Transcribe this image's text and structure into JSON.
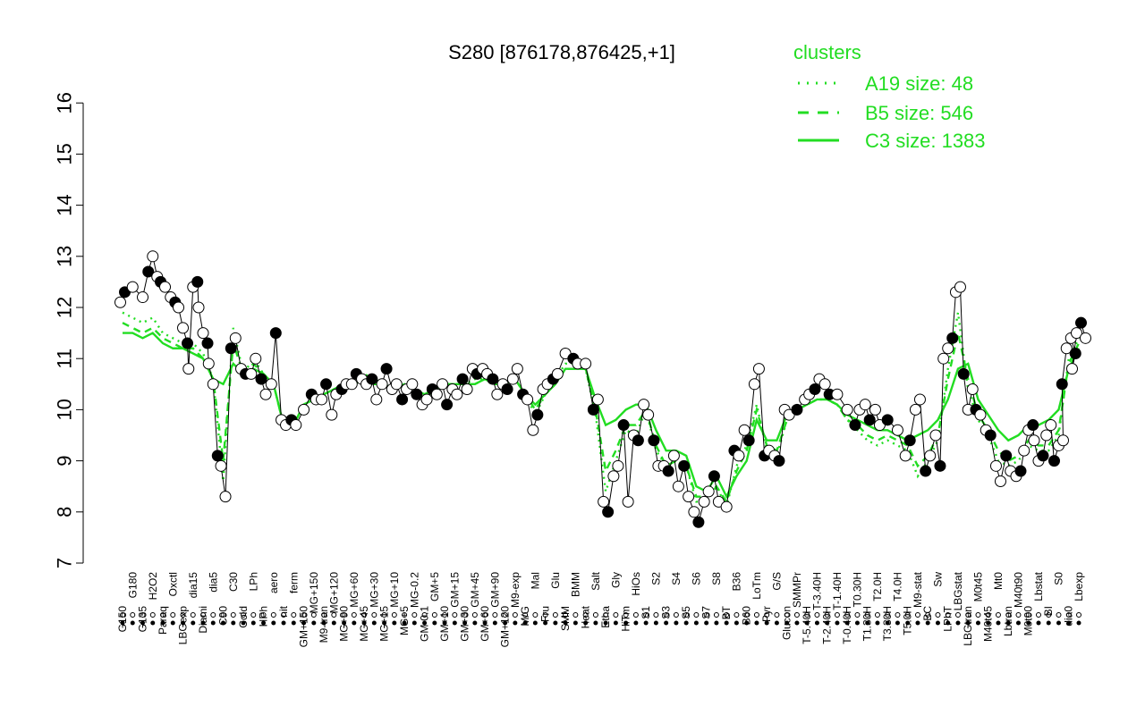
{
  "chart_data": {
    "type": "line",
    "title": "S280 [876178,876425,+1]",
    "xlabel": "",
    "ylabel": "",
    "ylim": [
      7,
      16
    ],
    "yticks": [
      7,
      8,
      9,
      10,
      11,
      12,
      13,
      14,
      15,
      16
    ],
    "legend": {
      "title": "clusters",
      "placement": "top-right",
      "color": "#22dd22",
      "entries": [
        {
          "label": "A19 size: 48",
          "style": "dotted"
        },
        {
          "label": "B5 size: 546",
          "style": "dashed"
        },
        {
          "label": "C3 size: 1383",
          "style": "solid"
        }
      ]
    },
    "categories": [
      "G150",
      "G180",
      "G135",
      "H2O2",
      "Paraq",
      "Oxctl",
      "LBGexp",
      "dia15",
      "Diami",
      "dia5",
      "C90",
      "C30",
      "Cold",
      "LPh",
      "HPh",
      "aero",
      "nit",
      "ferm",
      "GM+150",
      "MG+150",
      "M9-tran",
      "MG+120",
      "MG+90",
      "MG+60",
      "MG+45",
      "MG+30",
      "MG+15",
      "MG+10",
      "MG+5",
      "MG-0.2",
      "GM-0.1",
      "GM+5",
      "GM+10",
      "GM+15",
      "GM+30",
      "GM+45",
      "GM+60",
      "GM+90",
      "GM+120",
      "M9-exp",
      "M/G",
      "Mal",
      "Fru",
      "Glu",
      "SMM",
      "BMM",
      "Heat",
      "Salt",
      "Etha",
      "Gly",
      "HiTm",
      "HiOs",
      "S1",
      "S2",
      "S3",
      "S4",
      "S5",
      "S6",
      "S7",
      "S8",
      "BT",
      "B36",
      "B60",
      "LoTm",
      "Pyr",
      "G/S",
      "Glucon",
      "SMMPr",
      "T-5.40H",
      "T-3.40H",
      "T-2.40H",
      "T-1.40H",
      "T-0.40H",
      "T0.30H",
      "T1.30H",
      "T2.0H",
      "T3.30H",
      "T4.0H",
      "T5.0H",
      "M9-stat",
      "BC",
      "Sw",
      "LPhT",
      "LBGstat",
      "LBGtran",
      "M0t45",
      "M40t45",
      "Mt0",
      "Lbtran",
      "M40t90",
      "M0t90",
      "Lbstat",
      "BI",
      "S0",
      "dia0",
      "Lbexp"
    ],
    "series": [
      {
        "name": "A19 size: 48",
        "style": "dotted",
        "values": [
          11.9,
          11.8,
          11.7,
          11.8,
          11.5,
          11.4,
          11.3,
          11.3,
          11.1,
          10.6,
          8.6,
          11.6,
          10.7,
          11.0,
          10.7,
          10.5,
          9.7,
          9.7,
          10.1,
          10.2,
          10.3,
          10.4,
          10.5,
          10.6,
          10.7,
          10.6,
          10.5,
          10.4,
          10.5,
          10.4,
          10.2,
          10.4,
          10.5,
          10.5,
          10.5,
          10.6,
          10.6,
          10.5,
          10.5,
          10.6,
          10.3,
          9.9,
          10.3,
          10.6,
          10.9,
          10.9,
          10.8,
          9.9,
          8.4,
          9.0,
          9.6,
          9.5,
          10.0,
          9.2,
          8.9,
          9.0,
          8.9,
          8.2,
          8.2,
          8.5,
          8.1,
          8.9,
          9.3,
          10.1,
          9.2,
          9.1,
          9.8,
          10.0,
          10.1,
          10.2,
          10.2,
          10.1,
          9.8,
          9.6,
          9.4,
          9.3,
          9.4,
          9.3,
          9.2,
          8.7,
          9.0,
          9.4,
          10.8,
          11.9,
          10.4,
          9.8,
          9.5,
          9.0,
          8.9,
          9.0,
          9.3,
          9.2,
          9.2,
          9.5,
          11.0,
          11.4
        ]
      },
      {
        "name": "B5 size: 546",
        "style": "dashed",
        "values": [
          11.7,
          11.6,
          11.5,
          11.6,
          11.4,
          11.3,
          11.2,
          11.2,
          11.0,
          10.6,
          9.0,
          11.3,
          10.7,
          10.9,
          10.7,
          10.5,
          9.7,
          9.7,
          10.1,
          10.2,
          10.3,
          10.4,
          10.5,
          10.5,
          10.6,
          10.5,
          10.5,
          10.4,
          10.5,
          10.4,
          10.3,
          10.4,
          10.5,
          10.5,
          10.5,
          10.5,
          10.6,
          10.5,
          10.5,
          10.6,
          10.3,
          10.0,
          10.3,
          10.5,
          10.8,
          10.8,
          10.8,
          10.0,
          8.8,
          9.2,
          9.7,
          9.7,
          10.0,
          9.3,
          8.9,
          9.0,
          8.9,
          8.3,
          8.3,
          8.5,
          8.2,
          8.8,
          9.2,
          10.0,
          9.3,
          9.2,
          9.8,
          10.0,
          10.1,
          10.2,
          10.2,
          10.1,
          9.8,
          9.7,
          9.5,
          9.4,
          9.5,
          9.4,
          9.3,
          8.9,
          9.1,
          9.5,
          10.6,
          11.5,
          10.6,
          9.9,
          9.6,
          9.2,
          9.0,
          9.1,
          9.4,
          9.3,
          9.3,
          9.6,
          10.9,
          11.3
        ]
      },
      {
        "name": "C3 size: 1383",
        "style": "solid",
        "values": [
          11.5,
          11.5,
          11.4,
          11.5,
          11.3,
          11.2,
          11.2,
          11.1,
          11.0,
          10.6,
          10.5,
          10.9,
          10.7,
          10.8,
          10.7,
          10.5,
          9.7,
          9.7,
          10.1,
          10.2,
          10.3,
          10.4,
          10.5,
          10.5,
          10.6,
          10.5,
          10.5,
          10.4,
          10.5,
          10.4,
          10.3,
          10.4,
          10.5,
          10.5,
          10.5,
          10.5,
          10.6,
          10.5,
          10.5,
          10.6,
          10.3,
          10.1,
          10.3,
          10.5,
          10.8,
          10.8,
          10.8,
          10.2,
          9.7,
          9.8,
          10.0,
          10.1,
          10.1,
          9.6,
          9.2,
          9.2,
          9.1,
          8.5,
          8.4,
          8.7,
          8.3,
          8.7,
          9.0,
          9.8,
          9.4,
          9.4,
          9.9,
          10.0,
          10.1,
          10.2,
          10.2,
          10.1,
          9.9,
          9.8,
          9.7,
          9.6,
          9.6,
          9.5,
          9.4,
          9.5,
          9.6,
          9.8,
          10.2,
          10.8,
          10.9,
          10.2,
          9.9,
          9.6,
          9.4,
          9.5,
          9.7,
          9.7,
          9.8,
          10.0,
          10.8,
          11.2
        ]
      }
    ],
    "points": [
      {
        "label": "G150",
        "y": [
          12.1,
          12.3
        ]
      },
      {
        "label": "G180",
        "y": [
          12.4
        ]
      },
      {
        "label": "G135",
        "y": [
          12.2
        ]
      },
      {
        "label": "H2O2",
        "y": [
          12.7,
          13.0,
          12.6
        ]
      },
      {
        "label": "Paraq",
        "y": [
          12.5,
          12.4
        ]
      },
      {
        "label": "Oxctl",
        "y": [
          12.2,
          12.1
        ]
      },
      {
        "label": "LBGexp",
        "y": [
          12.0,
          11.6,
          11.3
        ]
      },
      {
        "label": "dia15",
        "y": [
          10.8,
          12.4,
          12.5
        ]
      },
      {
        "label": "Diami",
        "y": [
          12.0,
          11.5,
          11.3
        ]
      },
      {
        "label": "dia5",
        "y": [
          10.9,
          10.5,
          9.1
        ]
      },
      {
        "label": "C90",
        "y": [
          8.9,
          8.3
        ]
      },
      {
        "label": "C30",
        "y": [
          11.2,
          11.4
        ]
      },
      {
        "label": "Cold",
        "y": [
          10.8,
          10.7
        ]
      },
      {
        "label": "LPh",
        "y": [
          10.7,
          11.0
        ]
      },
      {
        "label": "HPh",
        "y": [
          10.6,
          10.3
        ]
      },
      {
        "label": "aero",
        "y": [
          10.5,
          11.5
        ]
      },
      {
        "label": "nit",
        "y": [
          9.8,
          9.7
        ]
      },
      {
        "label": "ferm",
        "y": [
          9.8,
          9.7
        ]
      },
      {
        "label": "GM+150",
        "y": [
          10.0
        ]
      },
      {
        "label": "MG+150",
        "y": [
          10.3,
          10.2
        ]
      },
      {
        "label": "M9-tran",
        "y": [
          10.2,
          10.5
        ]
      },
      {
        "label": "MG+120",
        "y": [
          9.9,
          10.3
        ]
      },
      {
        "label": "MG+90",
        "y": [
          10.4,
          10.5
        ]
      },
      {
        "label": "MG+60",
        "y": [
          10.5,
          10.7
        ]
      },
      {
        "label": "MG+45",
        "y": [
          10.6,
          10.5
        ]
      },
      {
        "label": "MG+30",
        "y": [
          10.6,
          10.2
        ]
      },
      {
        "label": "MG+15",
        "y": [
          10.5,
          10.8
        ]
      },
      {
        "label": "MG+10",
        "y": [
          10.4,
          10.5
        ]
      },
      {
        "label": "MG+5",
        "y": [
          10.2,
          10.4
        ]
      },
      {
        "label": "MG-0.2",
        "y": [
          10.5,
          10.3
        ]
      },
      {
        "label": "GM-0.1",
        "y": [
          10.1,
          10.2
        ]
      },
      {
        "label": "GM+5",
        "y": [
          10.4,
          10.3
        ]
      },
      {
        "label": "GM+10",
        "y": [
          10.5,
          10.1
        ]
      },
      {
        "label": "GM+15",
        "y": [
          10.4,
          10.3
        ]
      },
      {
        "label": "GM+30",
        "y": [
          10.6,
          10.4
        ]
      },
      {
        "label": "GM+45",
        "y": [
          10.8,
          10.7
        ]
      },
      {
        "label": "GM+60",
        "y": [
          10.8,
          10.7
        ]
      },
      {
        "label": "GM+90",
        "y": [
          10.6,
          10.3
        ]
      },
      {
        "label": "GM+120",
        "y": [
          10.5,
          10.4
        ]
      },
      {
        "label": "M9-exp",
        "y": [
          10.6,
          10.8
        ]
      },
      {
        "label": "M/G",
        "y": [
          10.3,
          10.2
        ]
      },
      {
        "label": "Mal",
        "y": [
          9.6,
          9.9
        ]
      },
      {
        "label": "Fru",
        "y": [
          10.4,
          10.5
        ]
      },
      {
        "label": "Glu",
        "y": [
          10.6,
          10.7
        ]
      },
      {
        "label": "SMM",
        "y": [
          11.1
        ]
      },
      {
        "label": "BMM",
        "y": [
          11.0,
          10.9
        ]
      },
      {
        "label": "Heat",
        "y": [
          10.9
        ]
      },
      {
        "label": "Salt",
        "y": [
          10.0,
          10.2
        ]
      },
      {
        "label": "Etha",
        "y": [
          8.2,
          8.0
        ]
      },
      {
        "label": "Gly",
        "y": [
          8.7,
          8.9
        ]
      },
      {
        "label": "HiTm",
        "y": [
          9.7,
          8.2
        ]
      },
      {
        "label": "HiOs",
        "y": [
          9.5,
          9.4
        ]
      },
      {
        "label": "S1",
        "y": [
          10.1,
          9.9
        ]
      },
      {
        "label": "S2",
        "y": [
          9.4,
          8.9
        ]
      },
      {
        "label": "S3",
        "y": [
          8.9,
          8.8
        ]
      },
      {
        "label": "S4",
        "y": [
          9.1,
          8.5
        ]
      },
      {
        "label": "S5",
        "y": [
          8.9,
          8.3
        ]
      },
      {
        "label": "S6",
        "y": [
          8.0,
          7.8
        ]
      },
      {
        "label": "S7",
        "y": [
          8.2,
          8.4
        ]
      },
      {
        "label": "S8",
        "y": [
          8.7,
          8.2
        ]
      },
      {
        "label": "BT",
        "y": [
          8.1
        ]
      },
      {
        "label": "B36",
        "y": [
          9.2,
          9.1
        ]
      },
      {
        "label": "B60",
        "y": [
          9.6,
          9.4
        ]
      },
      {
        "label": "LoTm",
        "y": [
          10.5,
          10.8
        ]
      },
      {
        "label": "Pyr",
        "y": [
          9.1,
          9.2
        ]
      },
      {
        "label": "G/S",
        "y": [
          9.1,
          9.0
        ]
      },
      {
        "label": "Glucon",
        "y": [
          10.0,
          9.9
        ]
      },
      {
        "label": "SMMPr",
        "y": [
          10.0
        ]
      },
      {
        "label": "T-5.40H",
        "y": [
          10.2,
          10.3
        ]
      },
      {
        "label": "T-3.40H",
        "y": [
          10.4,
          10.6
        ]
      },
      {
        "label": "T-2.40H",
        "y": [
          10.5,
          10.3
        ]
      },
      {
        "label": "T-1.40H",
        "y": [
          10.3
        ]
      },
      {
        "label": "T-0.40H",
        "y": [
          10.0
        ]
      },
      {
        "label": "T0.30H",
        "y": [
          9.7,
          10.0
        ]
      },
      {
        "label": "T1.30H",
        "y": [
          10.1,
          9.8
        ]
      },
      {
        "label": "T2.0H",
        "y": [
          10.0,
          9.7
        ]
      },
      {
        "label": "T3.30H",
        "y": [
          9.8
        ]
      },
      {
        "label": "T4.0H",
        "y": [
          9.6
        ]
      },
      {
        "label": "T5.0H",
        "y": [
          9.1,
          9.4
        ]
      },
      {
        "label": "M9-stat",
        "y": [
          10.0,
          10.2
        ]
      },
      {
        "label": "BC",
        "y": [
          8.8,
          9.1
        ]
      },
      {
        "label": "Sw",
        "y": [
          9.5,
          8.9
        ]
      },
      {
        "label": "LPhT",
        "y": [
          11.0,
          11.2,
          11.4
        ]
      },
      {
        "label": "LBGstat",
        "y": [
          12.3,
          12.4
        ]
      },
      {
        "label": "LBGtran",
        "y": [
          10.7,
          10.0,
          10.4
        ]
      },
      {
        "label": "M0t45",
        "y": [
          10.0,
          9.9
        ]
      },
      {
        "label": "M40t45",
        "y": [
          9.6,
          9.5
        ]
      },
      {
        "label": "Mt0",
        "y": [
          8.9,
          8.6
        ]
      },
      {
        "label": "Lbtran",
        "y": [
          9.1,
          8.8
        ]
      },
      {
        "label": "M40t90",
        "y": [
          8.7,
          8.8
        ]
      },
      {
        "label": "M0t90",
        "y": [
          9.2,
          9.6,
          9.7
        ]
      },
      {
        "label": "Lbstat",
        "y": [
          9.4,
          9.0,
          9.1
        ]
      },
      {
        "label": "BI",
        "y": [
          9.5,
          9.7
        ]
      },
      {
        "label": "S0",
        "y": [
          9.0,
          9.3,
          9.4
        ]
      },
      {
        "label": "dia0",
        "y": [
          10.5,
          11.2,
          11.4,
          11.1
        ]
      },
      {
        "label": "Lbexp",
        "y": [
          10.8,
          11.5,
          11.7,
          11.4
        ]
      }
    ],
    "grid": false
  }
}
